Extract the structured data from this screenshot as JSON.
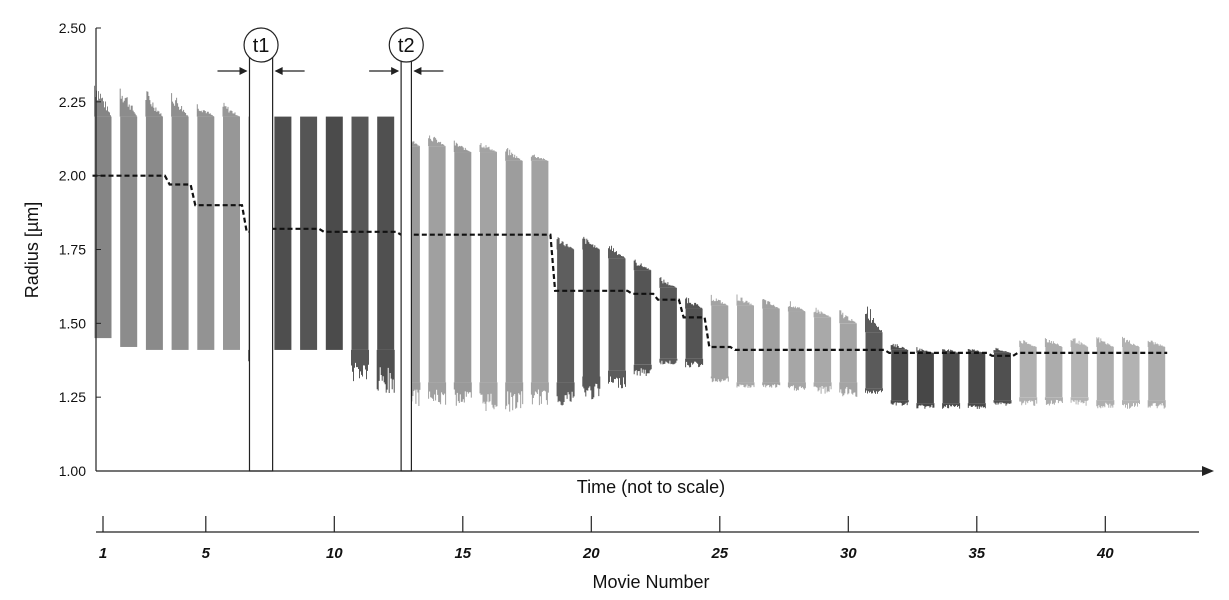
{
  "chart_data": {
    "type": "line",
    "title": "",
    "ylabel": "Radius [µm]",
    "xlabel": "Time (not to scale)",
    "secondary_xlabel": "Movie Number",
    "ylim": [
      1.0,
      2.5
    ],
    "yticks": [
      "1.00",
      "1.25",
      "1.50",
      "1.75",
      "2.00",
      "2.25",
      "2.50"
    ],
    "movie_ticks": [
      "1",
      "5",
      "10",
      "15",
      "20",
      "25",
      "30",
      "35",
      "40"
    ],
    "markers": [
      {
        "label": "t1",
        "movie_start": 6.7,
        "movie_end": 7.6
      },
      {
        "label": "t2",
        "movie_start": 12.6,
        "movie_end": 13.0
      }
    ],
    "movies": [
      {
        "movie": 1,
        "mean": 2.0,
        "high": 2.35,
        "low": 1.45,
        "plateau_top": 2.2,
        "plateau_bottom": 1.45,
        "shade": "#858585"
      },
      {
        "movie": 2,
        "mean": 2.0,
        "high": 2.33,
        "low": 1.42,
        "plateau_top": 2.2,
        "plateau_bottom": 1.42,
        "shade": "#8c8c8c"
      },
      {
        "movie": 3,
        "mean": 2.0,
        "high": 2.3,
        "low": 1.41,
        "plateau_top": 2.2,
        "plateau_bottom": 1.41,
        "shade": "#8a8a8a"
      },
      {
        "movie": 4,
        "mean": 1.97,
        "high": 2.3,
        "low": 1.41,
        "plateau_top": 2.2,
        "plateau_bottom": 1.41,
        "shade": "#8f8f8f"
      },
      {
        "movie": 5,
        "mean": 1.9,
        "high": 2.25,
        "low": 1.41,
        "plateau_top": 2.2,
        "plateau_bottom": 1.41,
        "shade": "#939393"
      },
      {
        "movie": 6,
        "mean": 1.9,
        "high": 2.25,
        "low": 1.41,
        "plateau_top": 2.2,
        "plateau_bottom": 1.41,
        "shade": "#979797"
      },
      {
        "movie": 7,
        "mean": 1.81,
        "high": 2.2,
        "low": 1.32,
        "plateau_top": 2.2,
        "plateau_bottom": 1.41,
        "shade": "#4a4a4a"
      },
      {
        "movie": 8,
        "mean": 1.82,
        "high": 2.2,
        "low": 1.41,
        "plateau_top": 2.2,
        "plateau_bottom": 1.41,
        "shade": "#4e4e4e"
      },
      {
        "movie": 9,
        "mean": 1.82,
        "high": 2.2,
        "low": 1.41,
        "plateau_top": 2.2,
        "plateau_bottom": 1.41,
        "shade": "#555555"
      },
      {
        "movie": 10,
        "mean": 1.81,
        "high": 2.2,
        "low": 1.41,
        "plateau_top": 2.2,
        "plateau_bottom": 1.41,
        "shade": "#4b4b4b"
      },
      {
        "movie": 11,
        "mean": 1.81,
        "high": 2.2,
        "low": 1.3,
        "plateau_top": 2.2,
        "plateau_bottom": 1.41,
        "shade": "#575757"
      },
      {
        "movie": 12,
        "mean": 1.81,
        "high": 2.2,
        "low": 1.24,
        "plateau_top": 2.2,
        "plateau_bottom": 1.41,
        "shade": "#505050"
      },
      {
        "movie": 13,
        "mean": 1.8,
        "high": 2.15,
        "low": 1.22,
        "plateau_top": 2.1,
        "plateau_bottom": 1.3,
        "shade": "#9a9a9a"
      },
      {
        "movie": 14,
        "mean": 1.8,
        "high": 2.15,
        "low": 1.22,
        "plateau_top": 2.1,
        "plateau_bottom": 1.3,
        "shade": "#a0a0a0"
      },
      {
        "movie": 15,
        "mean": 1.8,
        "high": 2.12,
        "low": 1.22,
        "plateau_top": 2.08,
        "plateau_bottom": 1.3,
        "shade": "#999999"
      },
      {
        "movie": 16,
        "mean": 1.8,
        "high": 2.12,
        "low": 1.2,
        "plateau_top": 2.08,
        "plateau_bottom": 1.3,
        "shade": "#a3a3a3"
      },
      {
        "movie": 17,
        "mean": 1.8,
        "high": 2.1,
        "low": 1.2,
        "plateau_top": 2.05,
        "plateau_bottom": 1.3,
        "shade": "#9d9d9d"
      },
      {
        "movie": 18,
        "mean": 1.8,
        "high": 2.08,
        "low": 1.22,
        "plateau_top": 2.05,
        "plateau_bottom": 1.3,
        "shade": "#a2a2a2"
      },
      {
        "movie": 19,
        "mean": 1.61,
        "high": 1.8,
        "low": 1.22,
        "plateau_top": 1.75,
        "plateau_bottom": 1.3,
        "shade": "#5e5e5e"
      },
      {
        "movie": 20,
        "mean": 1.61,
        "high": 1.8,
        "low": 1.24,
        "plateau_top": 1.75,
        "plateau_bottom": 1.32,
        "shade": "#585858"
      },
      {
        "movie": 21,
        "mean": 1.61,
        "high": 1.78,
        "low": 1.28,
        "plateau_top": 1.72,
        "plateau_bottom": 1.34,
        "shade": "#5c5c5c"
      },
      {
        "movie": 22,
        "mean": 1.6,
        "high": 1.72,
        "low": 1.32,
        "plateau_top": 1.68,
        "plateau_bottom": 1.36,
        "shade": "#555555"
      },
      {
        "movie": 23,
        "mean": 1.58,
        "high": 1.66,
        "low": 1.36,
        "plateau_top": 1.62,
        "plateau_bottom": 1.38,
        "shade": "#5a5a5a"
      },
      {
        "movie": 24,
        "mean": 1.52,
        "high": 1.6,
        "low": 1.35,
        "plateau_top": 1.55,
        "plateau_bottom": 1.38,
        "shade": "#545454"
      },
      {
        "movie": 25,
        "mean": 1.42,
        "high": 1.6,
        "low": 1.3,
        "plateau_top": 1.56,
        "plateau_bottom": 1.32,
        "shade": "#a3a3a3"
      },
      {
        "movie": 26,
        "mean": 1.41,
        "high": 1.6,
        "low": 1.28,
        "plateau_top": 1.56,
        "plateau_bottom": 1.3,
        "shade": "#a8a8a8"
      },
      {
        "movie": 27,
        "mean": 1.41,
        "high": 1.59,
        "low": 1.28,
        "plateau_top": 1.55,
        "plateau_bottom": 1.3,
        "shade": "#a1a1a1"
      },
      {
        "movie": 28,
        "mean": 1.41,
        "high": 1.58,
        "low": 1.27,
        "plateau_top": 1.54,
        "plateau_bottom": 1.3,
        "shade": "#a6a6a6"
      },
      {
        "movie": 29,
        "mean": 1.41,
        "high": 1.56,
        "low": 1.26,
        "plateau_top": 1.52,
        "plateau_bottom": 1.3,
        "shade": "#a9a9a9"
      },
      {
        "movie": 30,
        "mean": 1.41,
        "high": 1.55,
        "low": 1.25,
        "plateau_top": 1.5,
        "plateau_bottom": 1.3,
        "shade": "#a4a4a4"
      },
      {
        "movie": 31,
        "mean": 1.41,
        "high": 1.59,
        "low": 1.26,
        "plateau_top": 1.47,
        "plateau_bottom": 1.28,
        "shade": "#5a5a5a"
      },
      {
        "movie": 32,
        "mean": 1.4,
        "high": 1.44,
        "low": 1.22,
        "plateau_top": 1.41,
        "plateau_bottom": 1.24,
        "shade": "#4c4c4c"
      },
      {
        "movie": 33,
        "mean": 1.4,
        "high": 1.42,
        "low": 1.21,
        "plateau_top": 1.4,
        "plateau_bottom": 1.23,
        "shade": "#474747"
      },
      {
        "movie": 34,
        "mean": 1.4,
        "high": 1.42,
        "low": 1.21,
        "plateau_top": 1.4,
        "plateau_bottom": 1.23,
        "shade": "#4d4d4d"
      },
      {
        "movie": 35,
        "mean": 1.4,
        "high": 1.42,
        "low": 1.21,
        "plateau_top": 1.4,
        "plateau_bottom": 1.23,
        "shade": "#4a4a4a"
      },
      {
        "movie": 36,
        "mean": 1.39,
        "high": 1.42,
        "low": 1.22,
        "plateau_top": 1.4,
        "plateau_bottom": 1.24,
        "shade": "#505050"
      },
      {
        "movie": 37,
        "mean": 1.4,
        "high": 1.45,
        "low": 1.22,
        "plateau_top": 1.42,
        "plateau_bottom": 1.25,
        "shade": "#b0b0b0"
      },
      {
        "movie": 38,
        "mean": 1.4,
        "high": 1.46,
        "low": 1.22,
        "plateau_top": 1.42,
        "plateau_bottom": 1.25,
        "shade": "#acacac"
      },
      {
        "movie": 39,
        "mean": 1.4,
        "high": 1.46,
        "low": 1.22,
        "plateau_top": 1.42,
        "plateau_bottom": 1.25,
        "shade": "#b3b3b3"
      },
      {
        "movie": 40,
        "mean": 1.4,
        "high": 1.46,
        "low": 1.21,
        "plateau_top": 1.42,
        "plateau_bottom": 1.24,
        "shade": "#aeaeae"
      },
      {
        "movie": 41,
        "mean": 1.4,
        "high": 1.46,
        "low": 1.21,
        "plateau_top": 1.42,
        "plateau_bottom": 1.24,
        "shade": "#b2b2b2"
      },
      {
        "movie": 42,
        "mean": 1.4,
        "high": 1.45,
        "low": 1.21,
        "plateau_top": 1.42,
        "plateau_bottom": 1.24,
        "shade": "#adadad"
      }
    ],
    "grid": false,
    "legend": "none"
  }
}
